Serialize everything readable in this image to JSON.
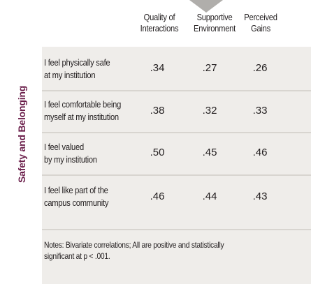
{
  "side_label": "Safety and Belonging",
  "columns": [
    {
      "line1": "Quality of",
      "line2": "Interactions"
    },
    {
      "line1": "Supportive",
      "line2": "Environment"
    },
    {
      "line1": "Perceived",
      "line2": "Gains"
    }
  ],
  "rows": [
    {
      "line1": "I feel physically safe",
      "line2": "at my institution",
      "values": [
        ".34",
        ".27",
        ".26"
      ]
    },
    {
      "line1": "I feel comfortable being",
      "line2": "myself at my institution",
      "values": [
        ".38",
        ".32",
        ".33"
      ]
    },
    {
      "line1": "I feel valued",
      "line2": "by my institution",
      "values": [
        ".50",
        ".45",
        ".46"
      ]
    },
    {
      "line1": "I feel like part of the",
      "line2": "campus community",
      "values": [
        ".46",
        ".44",
        ".43"
      ]
    }
  ],
  "notes": {
    "line1": "Notes: Bivariate correlations; All are positive and statistically",
    "line2": "significant at p < .001."
  },
  "colors": {
    "accent": "#6b1f4b",
    "panel": "#efedea",
    "pointer": "#b0aeab"
  }
}
